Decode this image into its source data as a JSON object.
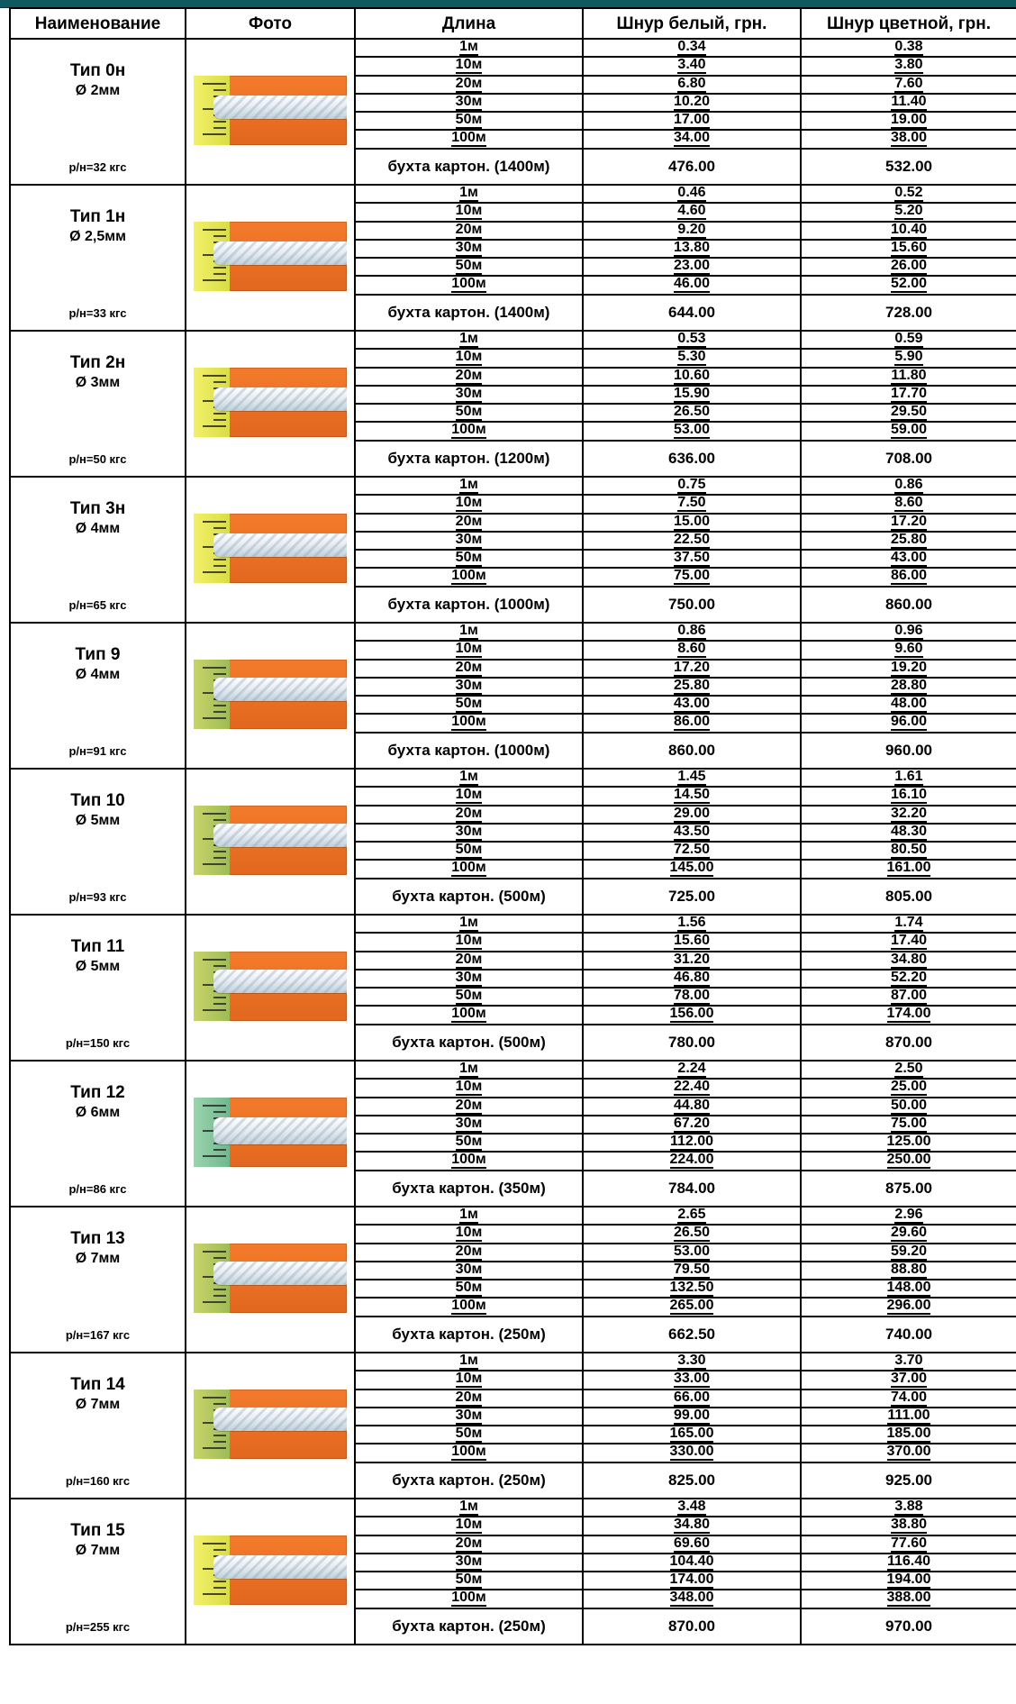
{
  "headers": {
    "name": "Наименование",
    "photo": "Фото",
    "length": "Длина",
    "white": "Шнур белый, грн.",
    "color": "Шнур цветной, грн."
  },
  "types": [
    {
      "name": "Тип 0н",
      "diameter": "Ø 2мм",
      "breaking_load": "р/н=32 кгс",
      "photo_style": "orange",
      "rows": [
        {
          "length": "1м",
          "white": "0.34",
          "color": "0.38"
        },
        {
          "length": "10м",
          "white": "3.40",
          "color": "3.80"
        },
        {
          "length": "20м",
          "white": "6.80",
          "color": "7.60"
        },
        {
          "length": "30м",
          "white": "10.20",
          "color": "11.40"
        },
        {
          "length": "50м",
          "white": "17.00",
          "color": "19.00"
        },
        {
          "length": "100м",
          "white": "34.00",
          "color": "38.00"
        }
      ],
      "spool": {
        "label": "бухта картон. (1400м)",
        "white": "476.00",
        "color": "532.00"
      }
    },
    {
      "name": "Тип 1н",
      "diameter": "Ø 2,5мм",
      "breaking_load": "р/н=33 кгс",
      "photo_style": "orange",
      "rows": [
        {
          "length": "1м",
          "white": "0.46",
          "color": "0.52"
        },
        {
          "length": "10м",
          "white": "4.60",
          "color": "5.20"
        },
        {
          "length": "20м",
          "white": "9.20",
          "color": "10.40"
        },
        {
          "length": "30м",
          "white": "13.80",
          "color": "15.60"
        },
        {
          "length": "50м",
          "white": "23.00",
          "color": "26.00"
        },
        {
          "length": "100м",
          "white": "46.00",
          "color": "52.00"
        }
      ],
      "spool": {
        "label": "бухта картон. (1400м)",
        "white": "644.00",
        "color": "728.00"
      }
    },
    {
      "name": "Тип 2н",
      "diameter": "Ø 3мм",
      "breaking_load": "р/н=50 кгс",
      "photo_style": "orange",
      "rows": [
        {
          "length": "1м",
          "white": "0.53",
          "color": "0.59"
        },
        {
          "length": "10м",
          "white": "5.30",
          "color": "5.90"
        },
        {
          "length": "20м",
          "white": "10.60",
          "color": "11.80"
        },
        {
          "length": "30м",
          "white": "15.90",
          "color": "17.70"
        },
        {
          "length": "50м",
          "white": "26.50",
          "color": "29.50"
        },
        {
          "length": "100м",
          "white": "53.00",
          "color": "59.00"
        }
      ],
      "spool": {
        "label": "бухта картон. (1200м)",
        "white": "636.00",
        "color": "708.00"
      }
    },
    {
      "name": "Тип 3н",
      "diameter": "Ø 4мм",
      "breaking_load": "р/н=65 кгс",
      "photo_style": "orange",
      "rows": [
        {
          "length": "1м",
          "white": "0.75",
          "color": "0.86"
        },
        {
          "length": "10м",
          "white": "7.50",
          "color": "8.60"
        },
        {
          "length": "20м",
          "white": "15.00",
          "color": "17.20"
        },
        {
          "length": "30м",
          "white": "22.50",
          "color": "25.80"
        },
        {
          "length": "50м",
          "white": "37.50",
          "color": "43.00"
        },
        {
          "length": "100м",
          "white": "75.00",
          "color": "86.00"
        }
      ],
      "spool": {
        "label": "бухта картон. (1000м)",
        "white": "750.00",
        "color": "860.00"
      }
    },
    {
      "name": "Тип 9",
      "diameter": "Ø 4мм",
      "breaking_load": "р/н=91 кгс",
      "photo_style": "green",
      "rows": [
        {
          "length": "1м",
          "white": "0.86",
          "color": "0.96"
        },
        {
          "length": "10м",
          "white": "8.60",
          "color": "9.60"
        },
        {
          "length": "20м",
          "white": "17.20",
          "color": "19.20"
        },
        {
          "length": "30м",
          "white": "25.80",
          "color": "28.80"
        },
        {
          "length": "50м",
          "white": "43.00",
          "color": "48.00"
        },
        {
          "length": "100м",
          "white": "86.00",
          "color": "96.00"
        }
      ],
      "spool": {
        "label": "бухта картон. (1000м)",
        "white": "860.00",
        "color": "960.00"
      }
    },
    {
      "name": "Тип 10",
      "diameter": "Ø 5мм",
      "breaking_load": "р/н=93 кгс",
      "photo_style": "green",
      "rows": [
        {
          "length": "1м",
          "white": "1.45",
          "color": "1.61"
        },
        {
          "length": "10м",
          "white": "14.50",
          "color": "16.10"
        },
        {
          "length": "20м",
          "white": "29.00",
          "color": "32.20"
        },
        {
          "length": "30м",
          "white": "43.50",
          "color": "48.30"
        },
        {
          "length": "50м",
          "white": "72.50",
          "color": "80.50"
        },
        {
          "length": "100м",
          "white": "145.00",
          "color": "161.00"
        }
      ],
      "spool": {
        "label": "бухта картон. (500м)",
        "white": "725.00",
        "color": "805.00"
      }
    },
    {
      "name": "Тип 11",
      "diameter": "Ø 5мм",
      "breaking_load": "р/н=150 кгс",
      "photo_style": "green",
      "rows": [
        {
          "length": "1м",
          "white": "1.56",
          "color": "1.74"
        },
        {
          "length": "10м",
          "white": "15.60",
          "color": "17.40"
        },
        {
          "length": "20м",
          "white": "31.20",
          "color": "34.80"
        },
        {
          "length": "30м",
          "white": "46.80",
          "color": "52.20"
        },
        {
          "length": "50м",
          "white": "78.00",
          "color": "87.00"
        },
        {
          "length": "100м",
          "white": "156.00",
          "color": "174.00"
        }
      ],
      "spool": {
        "label": "бухта картон. (500м)",
        "white": "780.00",
        "color": "870.00"
      }
    },
    {
      "name": "Тип 12",
      "diameter": "Ø 6мм",
      "breaking_load": "р/н=86 кгс",
      "photo_style": "teal",
      "rows": [
        {
          "length": "1м",
          "white": "2.24",
          "color": "2.50"
        },
        {
          "length": "10м",
          "white": "22.40",
          "color": "25.00"
        },
        {
          "length": "20м",
          "white": "44.80",
          "color": "50.00"
        },
        {
          "length": "30м",
          "white": "67.20",
          "color": "75.00"
        },
        {
          "length": "50м",
          "white": "112.00",
          "color": "125.00"
        },
        {
          "length": "100м",
          "white": "224.00",
          "color": "250.00"
        }
      ],
      "spool": {
        "label": "бухта картон. (350м)",
        "white": "784.00",
        "color": "875.00"
      }
    },
    {
      "name": "Тип 13",
      "diameter": "Ø 7мм",
      "breaking_load": "р/н=167 кгс",
      "photo_style": "green",
      "rows": [
        {
          "length": "1м",
          "white": "2.65",
          "color": "2.96"
        },
        {
          "length": "10м",
          "white": "26.50",
          "color": "29.60"
        },
        {
          "length": "20м",
          "white": "53.00",
          "color": "59.20"
        },
        {
          "length": "30м",
          "white": "79.50",
          "color": "88.80"
        },
        {
          "length": "50м",
          "white": "132.50",
          "color": "148.00"
        },
        {
          "length": "100м",
          "white": "265.00",
          "color": "296.00"
        }
      ],
      "spool": {
        "label": "бухта картон. (250м)",
        "white": "662.50",
        "color": "740.00"
      }
    },
    {
      "name": "Тип 14",
      "diameter": "Ø 7мм",
      "breaking_load": "р/н=160 кгс",
      "photo_style": "green",
      "rows": [
        {
          "length": "1м",
          "white": "3.30",
          "color": "3.70"
        },
        {
          "length": "10м",
          "white": "33.00",
          "color": "37.00"
        },
        {
          "length": "20м",
          "white": "66.00",
          "color": "74.00"
        },
        {
          "length": "30м",
          "white": "99.00",
          "color": "111.00"
        },
        {
          "length": "50м",
          "white": "165.00",
          "color": "185.00"
        },
        {
          "length": "100м",
          "white": "330.00",
          "color": "370.00"
        }
      ],
      "spool": {
        "label": "бухта картон. (250м)",
        "white": "825.00",
        "color": "925.00"
      }
    },
    {
      "name": "Тип 15",
      "diameter": "Ø 7мм",
      "breaking_load": "р/н=255 кгс",
      "photo_style": "orange",
      "rows": [
        {
          "length": "1м",
          "white": "3.48",
          "color": "3.88"
        },
        {
          "length": "10м",
          "white": "34.80",
          "color": "38.80"
        },
        {
          "length": "20м",
          "white": "69.60",
          "color": "77.60"
        },
        {
          "length": "30м",
          "white": "104.40",
          "color": "116.40"
        },
        {
          "length": "50м",
          "white": "174.00",
          "color": "194.00"
        },
        {
          "length": "100м",
          "white": "348.00",
          "color": "388.00"
        }
      ],
      "spool": {
        "label": "бухта картон. (250м)",
        "white": "870.00",
        "color": "970.00"
      }
    }
  ]
}
